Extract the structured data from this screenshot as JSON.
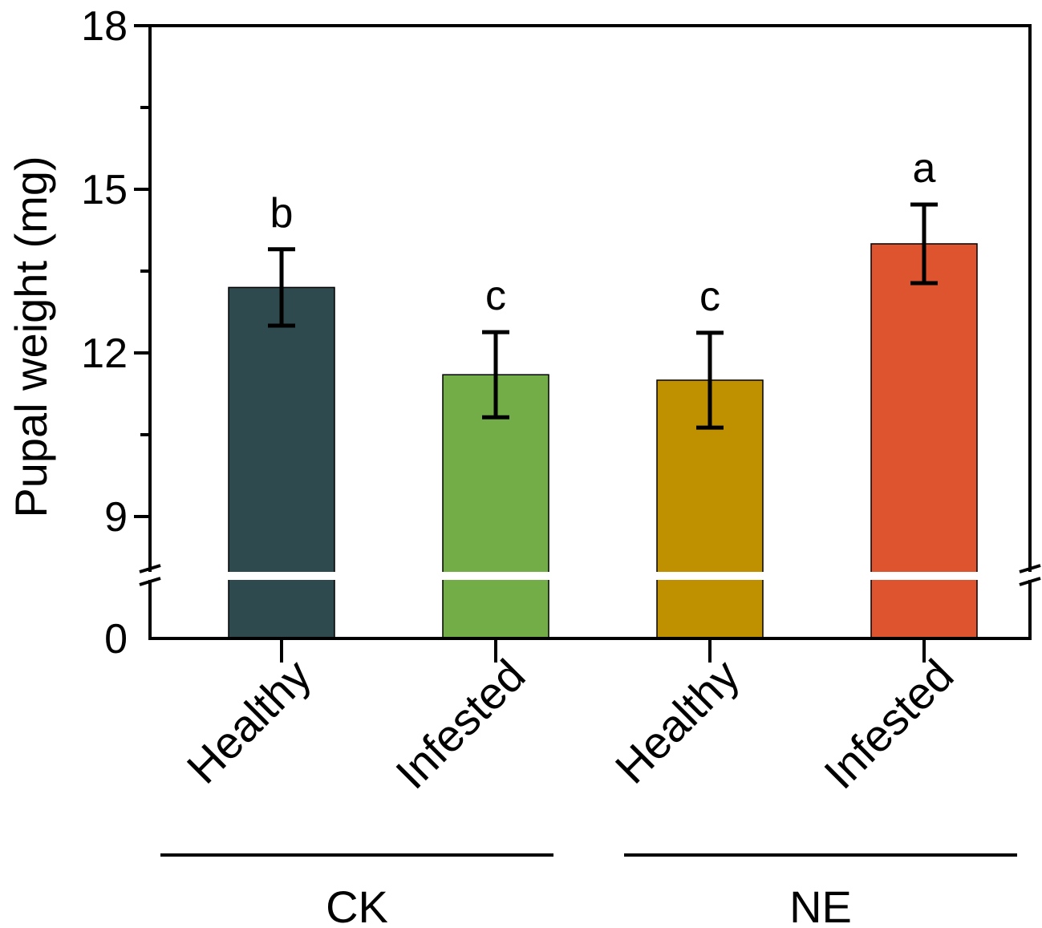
{
  "chart_data": {
    "type": "bar",
    "ylabel": "Pupal weight (mg)",
    "xlabel": "",
    "ylim_upper": [
      7.5,
      18
    ],
    "ylim_lower": [
      0,
      7.5
    ],
    "axis_break": true,
    "yticks": [
      {
        "value": 0,
        "label": "0"
      },
      {
        "value": 9,
        "label": "9"
      },
      {
        "value": 12,
        "label": "12"
      },
      {
        "value": 15,
        "label": "15"
      },
      {
        "value": 18,
        "label": "18"
      }
    ],
    "minor_ticks": [
      10.5,
      13.5,
      16.5
    ],
    "categories": [
      "Healthy",
      "Infested",
      "Healthy",
      "Infested"
    ],
    "values": [
      13.2,
      11.6,
      11.5,
      14.0
    ],
    "errors": [
      0.7,
      0.78,
      0.87,
      0.72
    ],
    "significance": [
      "b",
      "c",
      "c",
      "a"
    ],
    "colors": [
      "#2f4a4e",
      "#72ad48",
      "#bf9000",
      "#dd542e"
    ],
    "groups": [
      {
        "label": "CK",
        "categories": [
          0,
          1
        ]
      },
      {
        "label": "NE",
        "categories": [
          2,
          3
        ]
      }
    ],
    "grid": false,
    "legend": "none"
  }
}
